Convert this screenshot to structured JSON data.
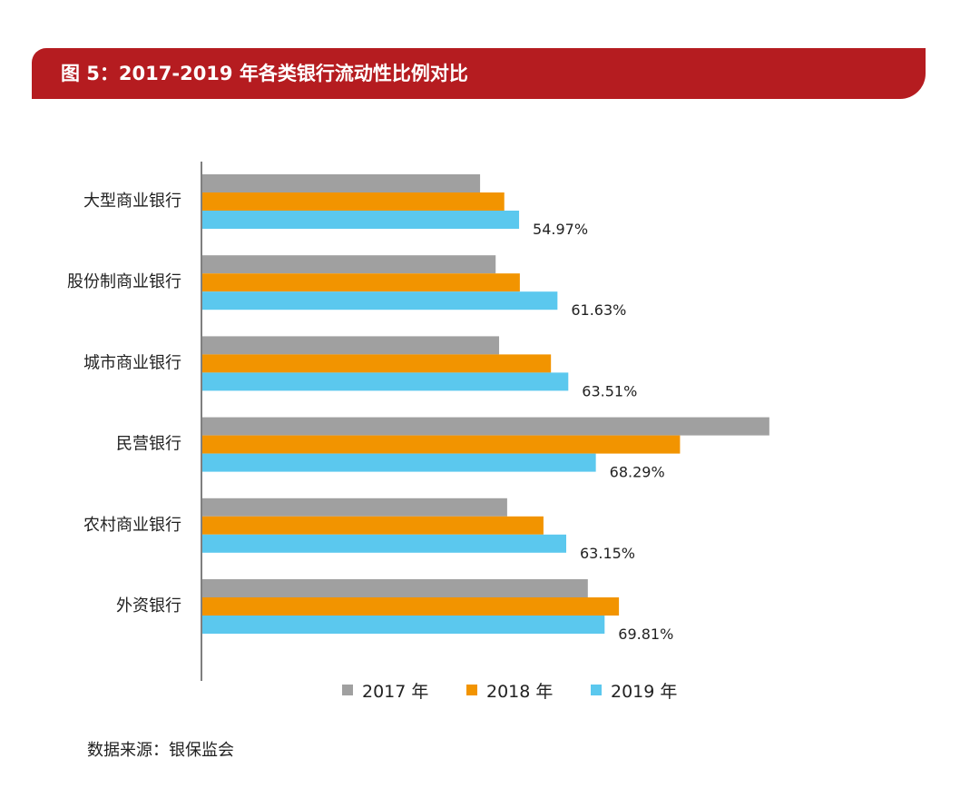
{
  "title": "图 5：2017-2019 年各类银行流动性比例对比",
  "source": "数据来源：银保监会",
  "colors": {
    "banner": "#b51c20",
    "s2017": "#a0a0a0",
    "s2018": "#f29400",
    "s2019": "#5bc8ee"
  },
  "chart_data": {
    "type": "bar",
    "orientation": "horizontal",
    "title": "图 5：2017-2019 年各类银行流动性比例对比",
    "categories": [
      "大型商业银行",
      "股份制商业银行",
      "城市商业银行",
      "民营银行",
      "农村商业银行",
      "外资银行"
    ],
    "series": [
      {
        "name": "2017 年",
        "color": "#a0a0a0",
        "values": [
          48.2,
          50.9,
          51.5,
          98.4,
          52.9,
          66.9
        ]
      },
      {
        "name": "2018 年",
        "color": "#f29400",
        "values": [
          52.4,
          55.1,
          60.5,
          82.9,
          59.2,
          72.3
        ]
      },
      {
        "name": "2019 年",
        "color": "#5bc8ee",
        "values": [
          54.97,
          61.63,
          63.51,
          68.29,
          63.15,
          69.81
        ]
      }
    ],
    "data_labels": [
      "54.97%",
      "61.63%",
      "63.51%",
      "68.29%",
      "63.15%",
      "69.81%"
    ],
    "xlim": [
      0,
      100
    ],
    "legend_position": "bottom",
    "grid": false
  }
}
